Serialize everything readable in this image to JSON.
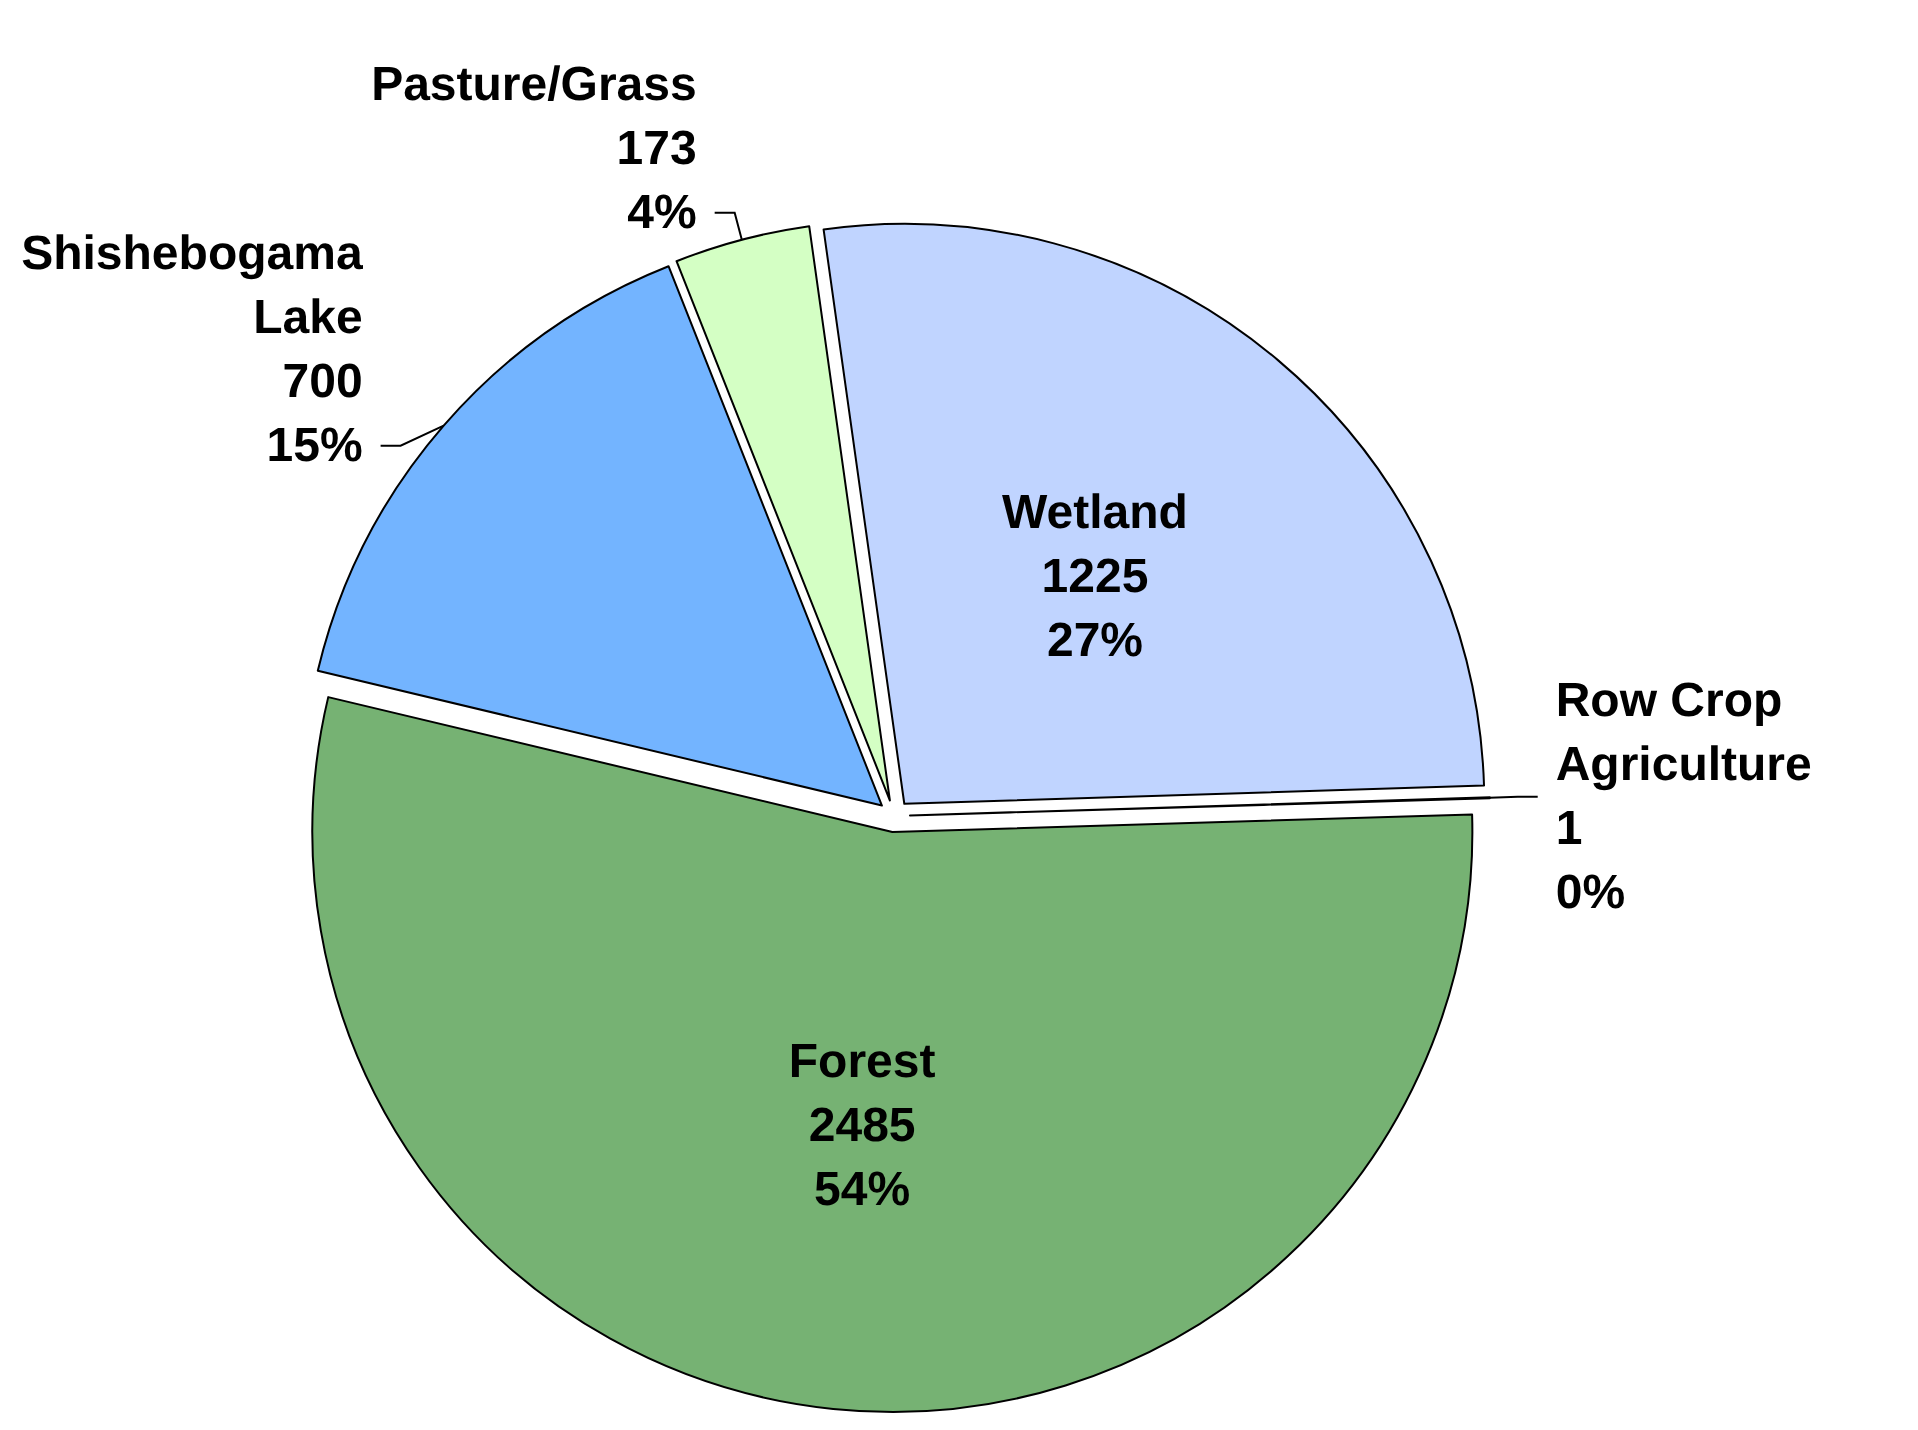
{
  "chart_data": {
    "type": "pie",
    "categories": [
      "Wetland",
      "Row Crop Agriculture",
      "Forest",
      "Shishebogama Lake",
      "Pasture/Grass"
    ],
    "values": [
      1225,
      1,
      2485,
      700,
      173
    ],
    "colors": [
      "#c0d4ff",
      "#ffffff",
      "#76b273",
      "#73b4ff",
      "#d4ffc4"
    ],
    "value_labels": [
      "1225\n27%",
      "1\n0%",
      "2485\n54%",
      "700\n15%",
      "173\n4%"
    ]
  }
}
